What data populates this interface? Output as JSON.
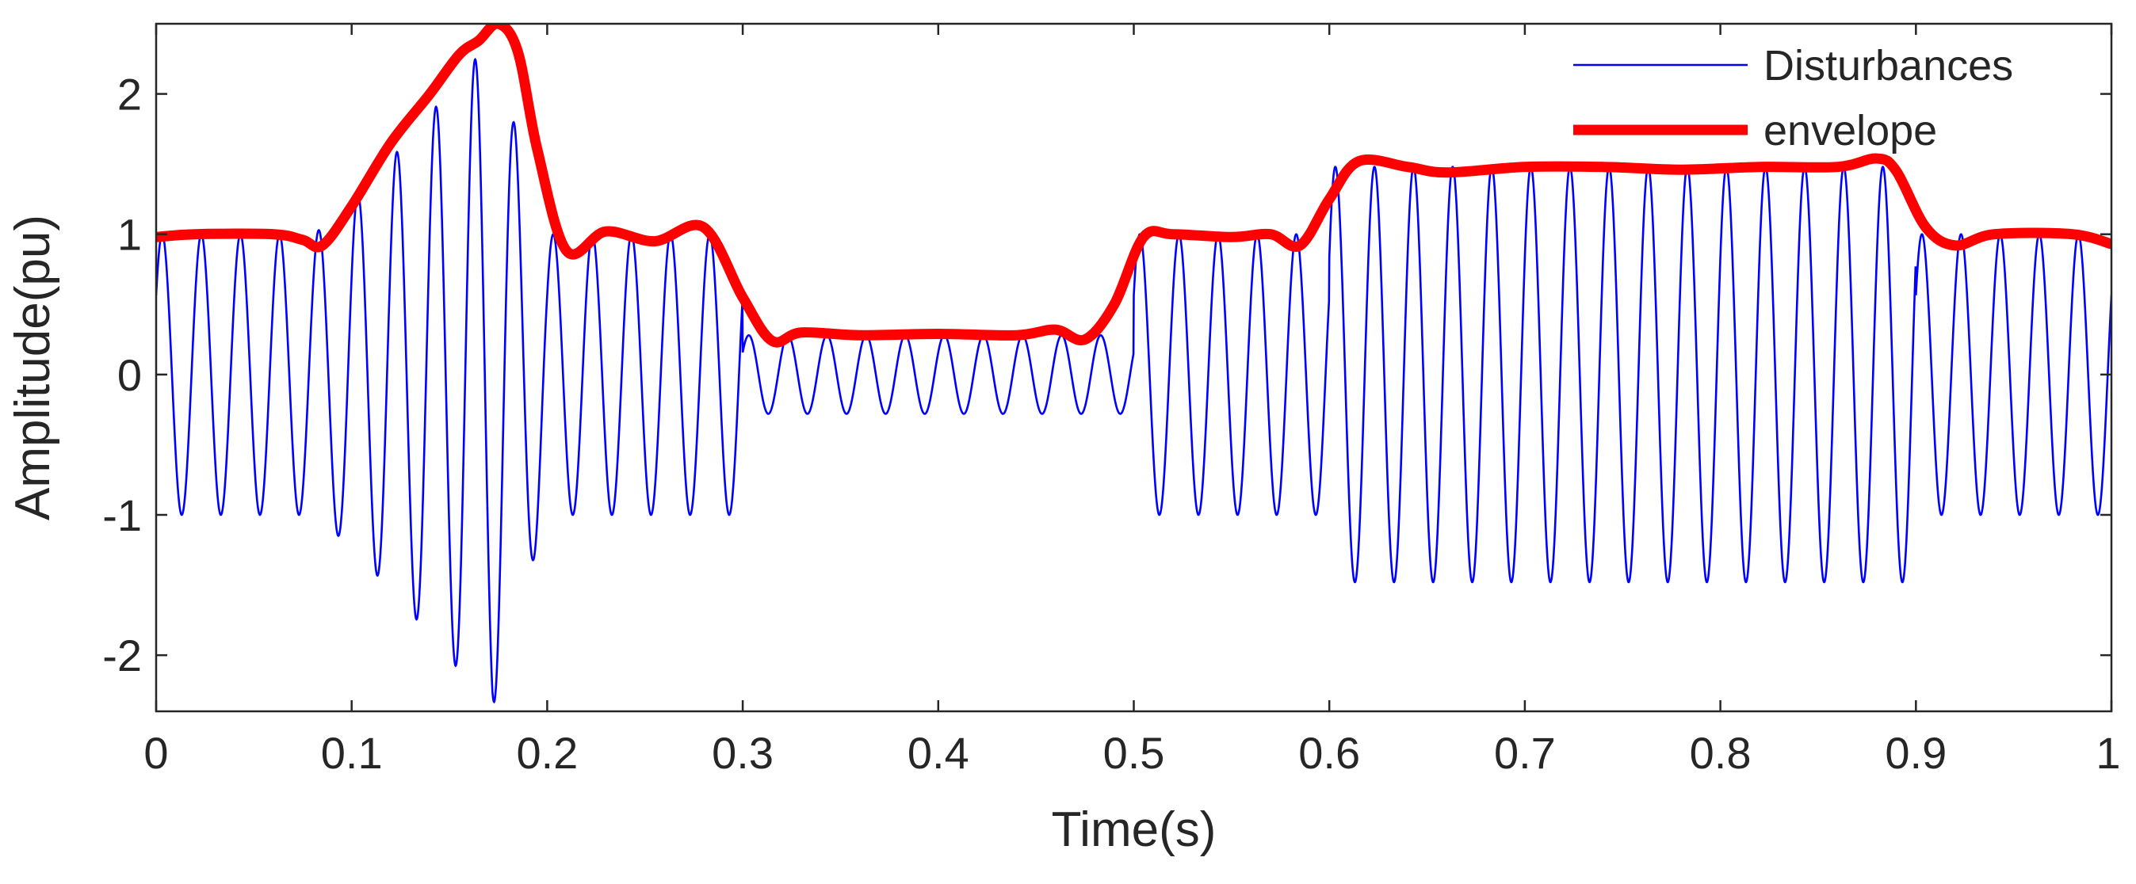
{
  "chart_data": {
    "type": "line",
    "xlabel": "Time(s)",
    "ylabel": "Amplitude(pu)",
    "xlim": [
      0,
      1
    ],
    "ylim": [
      -2.4,
      2.5
    ],
    "x_ticks": [
      0,
      0.1,
      0.2,
      0.3,
      0.4,
      0.5,
      0.6,
      0.7,
      0.8,
      0.9,
      1
    ],
    "x_tick_labels": [
      "0",
      "0.1",
      "0.2",
      "0.3",
      "0.4",
      "0.5",
      "0.6",
      "0.7",
      "0.8",
      "0.9",
      "1"
    ],
    "y_ticks": [
      -2,
      -1,
      0,
      1,
      2
    ],
    "y_tick_labels": [
      "-2",
      "-1",
      "0",
      "1",
      "2"
    ],
    "grid": false,
    "legend_position": "top-right",
    "signal_frequency_hz": 50,
    "series": [
      {
        "name": "Disturbances",
        "color": "#0000ff",
        "style": "thin",
        "description_of_values": "sinusoid of the given frequency multiplied by the amplitude segments",
        "amplitude_segments": [
          {
            "t_start": 0.0,
            "t_end": 0.08,
            "amplitude": 1.0
          },
          {
            "t_start": 0.08,
            "t_end": 0.2,
            "amplitude": "swell up to 2.4 (peak near 0.17 s)"
          },
          {
            "t_start": 0.2,
            "t_end": 0.3,
            "amplitude": 1.0
          },
          {
            "t_start": 0.3,
            "t_end": 0.5,
            "amplitude": 0.28
          },
          {
            "t_start": 0.5,
            "t_end": 0.6,
            "amplitude": 1.0
          },
          {
            "t_start": 0.6,
            "t_end": 0.9,
            "amplitude": 1.48
          },
          {
            "t_start": 0.9,
            "t_end": 1.0,
            "amplitude": 1.0
          }
        ]
      },
      {
        "name": "envelope",
        "color": "#ff0000",
        "style": "thick",
        "x": [
          0.0,
          0.02,
          0.06,
          0.075,
          0.085,
          0.1,
          0.12,
          0.14,
          0.155,
          0.165,
          0.175,
          0.185,
          0.195,
          0.21,
          0.23,
          0.255,
          0.28,
          0.3,
          0.315,
          0.33,
          0.36,
          0.4,
          0.44,
          0.46,
          0.475,
          0.49,
          0.505,
          0.52,
          0.55,
          0.57,
          0.585,
          0.6,
          0.615,
          0.64,
          0.66,
          0.7,
          0.74,
          0.78,
          0.82,
          0.86,
          0.88,
          0.89,
          0.905,
          0.92,
          0.94,
          0.98,
          1.0
        ],
        "y": [
          0.98,
          1.0,
          1.0,
          0.96,
          0.92,
          1.2,
          1.65,
          2.0,
          2.28,
          2.38,
          2.5,
          2.3,
          1.6,
          0.88,
          1.02,
          0.95,
          1.05,
          0.55,
          0.24,
          0.3,
          0.28,
          0.29,
          0.28,
          0.32,
          0.25,
          0.5,
          0.98,
          1.0,
          0.98,
          1.0,
          0.92,
          1.25,
          1.52,
          1.48,
          1.44,
          1.48,
          1.48,
          1.46,
          1.48,
          1.48,
          1.54,
          1.45,
          1.05,
          0.92,
          1.0,
          1.0,
          0.93
        ]
      }
    ]
  }
}
